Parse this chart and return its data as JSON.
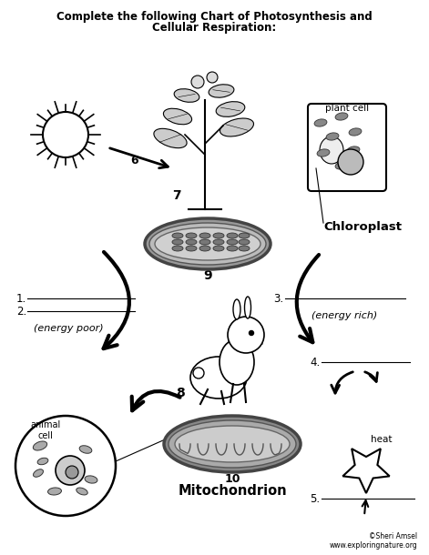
{
  "title_line1": "Complete the following Chart of Photosynthesis and",
  "title_line2": "Cellular Respiration:",
  "background_color": "#ffffff",
  "label_6": "6",
  "label_7": "7",
  "label_8": "8",
  "label_9": "9",
  "label_10": "10",
  "label_chloroplast": "Chloroplast",
  "label_mitochondrion": "Mitochondrion",
  "label_plant_cell": "plant cell",
  "label_animal_cell": "animal\ncell",
  "label_energy_poor": "(energy poor)",
  "label_energy_rich": "(energy rich)",
  "label_heat": "heat",
  "line1_prefix": "1.",
  "line2_prefix": "2.",
  "line3_prefix": "3.",
  "line4_prefix": "4.",
  "line5_prefix": "5.",
  "credit1": "©Sheri Amsel",
  "credit2": "www.exploringnature.org"
}
